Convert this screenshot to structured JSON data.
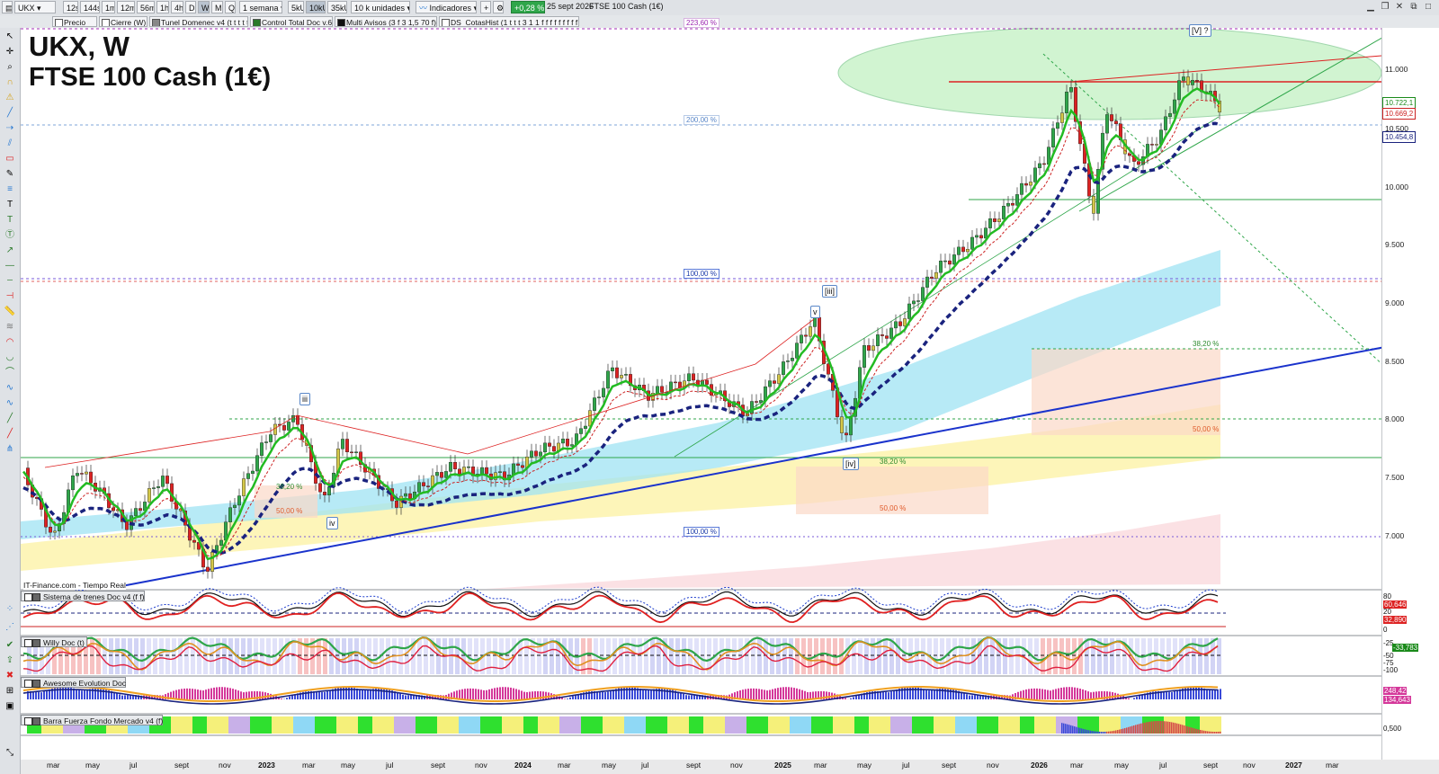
{
  "toolbar": {
    "symbol": "UKX",
    "periods": [
      "12s",
      "144s",
      "1m",
      "12m",
      "56m",
      "1h",
      "4h",
      "D",
      "W",
      "M",
      "Q"
    ],
    "selected_period": "W",
    "range": "1 semana",
    "units": [
      "5kU",
      "10kU",
      "35kU"
    ],
    "selected_unit": "10kU",
    "units_dropdown": "10 k unidades",
    "indicators": "Indicadores",
    "change_pct": "+0,28 %",
    "date": "25 sept 2026",
    "instrument": "FTSE 100 Cash (1€)"
  },
  "indicator_tabs": [
    "Precio",
    "Cierre (W)",
    "Tunel Domenec v4 (t t t t t)",
    "Control Total Doc v.6",
    "Multi Avisos (3 f 3 1,5 70 f)",
    "DS_CotasHist (1 t t t 3 1 1 f f f f f f f f f f f ..."
  ],
  "chart": {
    "title_line1": "UKX, W",
    "title_line2": "FTSE 100 Cash (1€)",
    "source": "IT-Finance.com - Tiempo Real",
    "price_axis": [
      "11.000",
      "10.500",
      "10.000",
      "9.500",
      "9.000",
      "8.500",
      "8.000",
      "7.500",
      "7.000"
    ],
    "price_tags": [
      {
        "text": "10.722,1",
        "color": "#1a8a1a"
      },
      {
        "text": "10.669,2",
        "color": "#cc2222"
      },
      {
        "text": "10.454,8",
        "color": "#1a237e"
      }
    ],
    "fib_labels": [
      {
        "text": "223,60 %",
        "color": "#9c27b0"
      },
      {
        "text": "200,00 %",
        "color": "#5a87c8"
      },
      {
        "text": "100,00 %",
        "color": "#1a3aa8"
      },
      {
        "text": "38,20 %",
        "color": "#2e8b2e"
      },
      {
        "text": "50,00 %",
        "color": "#e05a2a"
      },
      {
        "text": "38,20 %",
        "color": "#2e8b2e"
      },
      {
        "text": "50,00 %",
        "color": "#e05a2a"
      },
      {
        "text": "38,20 %",
        "color": "#2e8b2e"
      },
      {
        "text": "50,00 %",
        "color": "#e05a2a"
      },
      {
        "text": "100,00 %",
        "color": "#1a3aa8"
      }
    ],
    "wave_labels": [
      "[V] ?",
      "[iii]",
      "v",
      "iii",
      "iv",
      "[iv]"
    ],
    "x_axis": [
      "mar",
      "may",
      "jul",
      "sept",
      "nov",
      "2023",
      "mar",
      "may",
      "jul",
      "sept",
      "nov",
      "2024",
      "mar",
      "may",
      "jul",
      "sept",
      "nov",
      "2025",
      "mar",
      "may",
      "jul",
      "sept",
      "nov",
      "2026",
      "mar",
      "may",
      "jul",
      "sept",
      "nov",
      "2027",
      "mar"
    ]
  },
  "subpanels": [
    {
      "name": "Sistema de trenes Doc v4 (f f)",
      "values": [
        "80",
        "60,646",
        "20",
        "32,890",
        "0"
      ]
    },
    {
      "name": "Willy Doc (t)",
      "values": [
        "-25",
        "-33,783",
        "-50",
        "-75",
        "-100"
      ]
    },
    {
      "name": "Awesome Evolution Doc",
      "values": [
        "248,42",
        "134,643"
      ]
    },
    {
      "name": "Barra Fuerza Fondo Mercado v4 (f)",
      "values": [
        "0,500"
      ]
    }
  ],
  "colors": {
    "ema_fast": "#22bb22",
    "ema_slow": "#1a237e",
    "trendline": "#1a33cc",
    "ellipse": "#8ee08e",
    "resistance": "#dd2222"
  },
  "icons": [
    "cursor-icon",
    "crosshair-icon",
    "zoom-icon",
    "magnet-icon",
    "pencil-icon",
    "ruler-icon",
    "text-icon",
    "delete-icon",
    "trash-icon"
  ]
}
